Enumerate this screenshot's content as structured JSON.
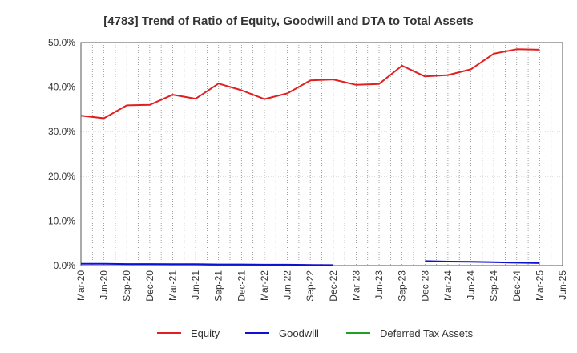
{
  "chart_data": {
    "type": "line",
    "title": "[4783]  Trend of Ratio of Equity, Goodwill and DTA to Total Assets",
    "xlabel": "",
    "ylabel": "",
    "x": [
      "Mar-20",
      "Jun-20",
      "Sep-20",
      "Dec-20",
      "Mar-21",
      "Jun-21",
      "Sep-21",
      "Dec-21",
      "Mar-22",
      "Jun-22",
      "Sep-22",
      "Dec-22",
      "Mar-23",
      "Jun-23",
      "Sep-23",
      "Dec-23",
      "Mar-24",
      "Jun-24",
      "Sep-24",
      "Dec-24",
      "Mar-25",
      "Jun-25"
    ],
    "ylim": [
      0,
      50
    ],
    "y_ticks": [
      "0.0%",
      "10.0%",
      "20.0%",
      "30.0%",
      "40.0%",
      "50.0%"
    ],
    "y_tick_values": [
      0,
      10,
      20,
      30,
      40,
      50
    ],
    "grid": true,
    "legend_position": "bottom",
    "series": [
      {
        "name": "Equity",
        "color": "#e02020",
        "values": [
          33.6,
          33.0,
          35.9,
          36.0,
          38.3,
          37.4,
          40.8,
          39.3,
          37.3,
          38.6,
          41.5,
          41.7,
          40.5,
          40.7,
          44.8,
          42.4,
          42.7,
          44.0,
          47.5,
          48.5,
          48.4,
          null
        ]
      },
      {
        "name": "Goodwill",
        "color": "#1010d0",
        "values": [
          0.4,
          0.4,
          0.35,
          0.35,
          0.3,
          0.3,
          0.25,
          0.25,
          0.2,
          0.2,
          0.15,
          0.1,
          null,
          null,
          null,
          1.0,
          0.9,
          0.85,
          0.75,
          0.65,
          0.55,
          null
        ]
      },
      {
        "name": "Deferred Tax Assets",
        "color": "#20a020",
        "values": [
          null,
          null,
          null,
          null,
          null,
          null,
          null,
          null,
          null,
          null,
          null,
          null,
          null,
          null,
          null,
          null,
          null,
          null,
          null,
          null,
          null,
          null
        ]
      }
    ]
  }
}
